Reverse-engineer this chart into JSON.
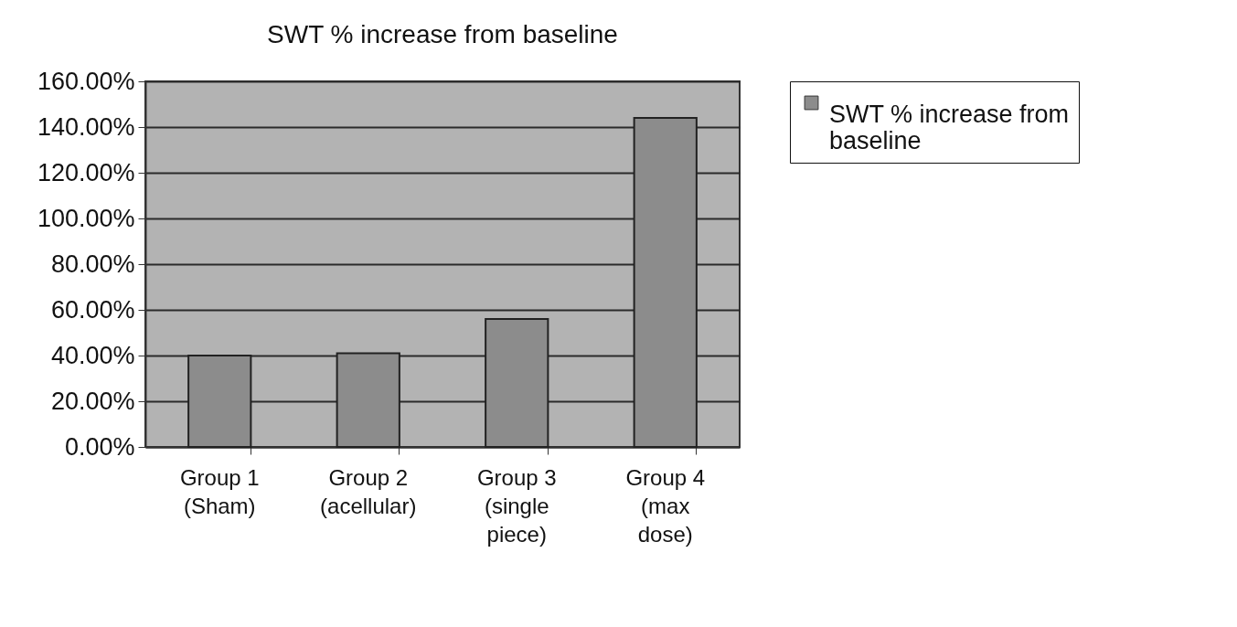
{
  "chart_data": {
    "type": "bar",
    "title": "SWT % increase from baseline",
    "categories": [
      "Group 1 (Sham)",
      "Group 2 (acellular)",
      "Group 3 (single piece)",
      "Group 4 (max dose)"
    ],
    "series": [
      {
        "name": "SWT % increase from baseline",
        "color": "#8c8c8c",
        "values": [
          40,
          41,
          56,
          144
        ]
      }
    ],
    "ylim": [
      0,
      160
    ],
    "yticks": [
      {
        "value": 0,
        "label": "0.00%"
      },
      {
        "value": 20,
        "label": "20.00%"
      },
      {
        "value": 40,
        "label": "40.00%"
      },
      {
        "value": 60,
        "label": "60.00%"
      },
      {
        "value": 80,
        "label": "80.00%"
      },
      {
        "value": 100,
        "label": "100.00%"
      },
      {
        "value": 120,
        "label": "120.00%"
      },
      {
        "value": 140,
        "label": "140.00%"
      },
      {
        "value": 160,
        "label": "160.00%"
      }
    ],
    "grid": "y",
    "legend": "right"
  }
}
